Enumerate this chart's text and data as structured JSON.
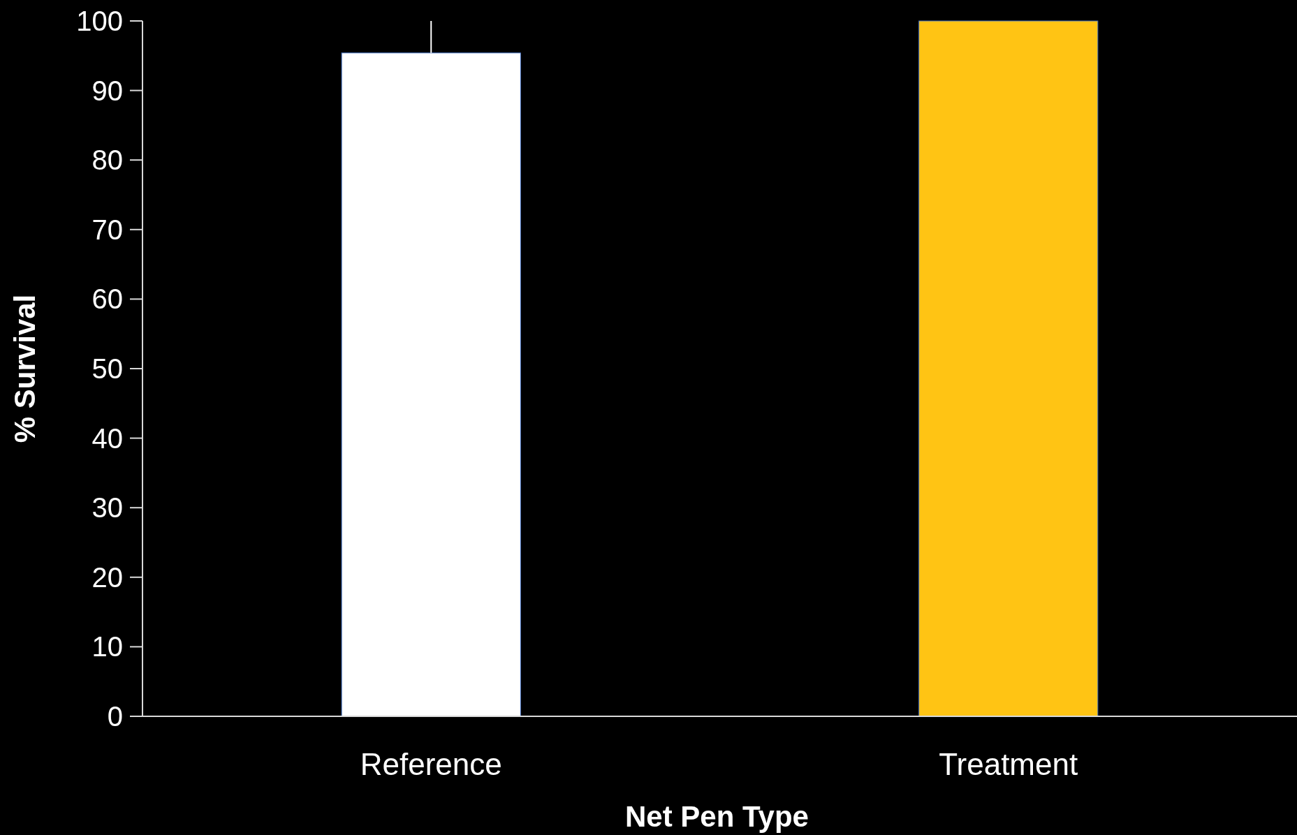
{
  "chart_data": {
    "type": "bar",
    "xlabel": "Net Pen Type",
    "ylabel": "% Survival",
    "categories": [
      "Reference",
      "Treatment"
    ],
    "values": [
      95.4,
      100
    ],
    "colors": [
      "#ffffff",
      "#ffc414"
    ],
    "errors": [
      [
        95.4,
        100
      ],
      null
    ],
    "ylim": [
      0,
      100
    ],
    "yticks": [
      0,
      10,
      20,
      30,
      40,
      50,
      60,
      70,
      80,
      90,
      100
    ],
    "grid": false
  }
}
